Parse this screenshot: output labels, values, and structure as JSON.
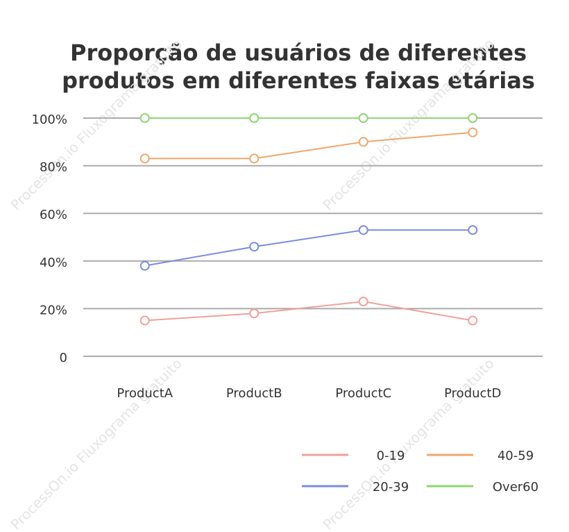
{
  "watermark": "ProcessOn.io Fluxograma gratuito",
  "chart_data": {
    "type": "line",
    "title": "Proporção de usuários de diferentes produtos em diferentes faixas etárias",
    "categories": [
      "ProductA",
      "ProductB",
      "ProductC",
      "ProductD"
    ],
    "series": [
      {
        "name": "0-19",
        "color": "#f0a09a",
        "values": [
          15,
          18,
          23,
          15
        ]
      },
      {
        "name": "20-39",
        "color": "#7b8be0",
        "values": [
          38,
          46,
          53,
          53
        ]
      },
      {
        "name": "40-59",
        "color": "#f0a868",
        "values": [
          83,
          83,
          90,
          94
        ]
      },
      {
        "name": "Over60",
        "color": "#8fd672",
        "values": [
          100,
          100,
          100,
          100
        ]
      }
    ],
    "ylim": [
      0,
      100
    ],
    "yticks": [
      0,
      {
        "value": 20,
        "label": "20%"
      },
      {
        "value": 40,
        "label": "40%"
      },
      {
        "value": 60,
        "label": "60%"
      },
      {
        "value": 80,
        "label": "80%"
      },
      {
        "value": 100,
        "label": "100%"
      }
    ],
    "grid": true,
    "legend": "bottom-right"
  }
}
